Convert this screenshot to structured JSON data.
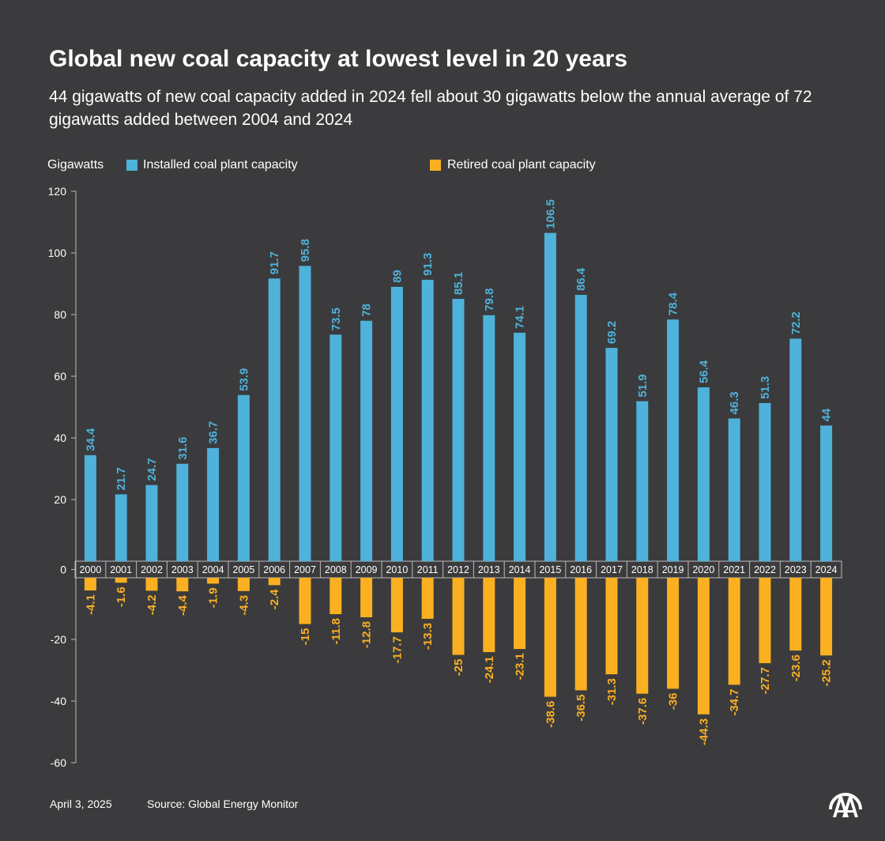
{
  "title": "Global new coal capacity at lowest level in 20 years",
  "subtitle": "44 gigawatts of new coal capacity added in 2024 fell about 30 gigawatts below the annual average of 72 gigawatts added between 2004 and 2024",
  "footer": {
    "date": "April 3, 2025",
    "source": "Source: Global Energy Monitor",
    "logo": "AA"
  },
  "chart_data": {
    "type": "bar",
    "title": "Global new coal capacity at lowest level in 20 years",
    "ylabel": "Gigawatts",
    "ylim": [
      -60,
      120
    ],
    "yticks": [
      120,
      100,
      80,
      60,
      40,
      20,
      0,
      -20,
      -40,
      -60
    ],
    "legend_position": "top",
    "categories": [
      "2000",
      "2001",
      "2002",
      "2003",
      "2004",
      "2005",
      "2006",
      "2007",
      "2008",
      "2009",
      "2010",
      "2011",
      "2012",
      "2013",
      "2014",
      "2015",
      "2016",
      "2017",
      "2018",
      "2019",
      "2020",
      "2021",
      "2022",
      "2023",
      "2024"
    ],
    "series": [
      {
        "name": "Installed coal plant capacity",
        "color": "#4fb2da",
        "values": [
          34.4,
          21.7,
          24.7,
          31.6,
          36.7,
          53.9,
          91.7,
          95.8,
          73.5,
          78,
          89,
          91.3,
          85.1,
          79.8,
          74.1,
          106.5,
          86.4,
          69.2,
          51.9,
          78.4,
          56.4,
          46.3,
          51.3,
          72.2,
          44
        ]
      },
      {
        "name": "Retired coal plant capacity",
        "color": "#fbb022",
        "values": [
          -4.1,
          -1.6,
          -4.2,
          -4.4,
          -1.9,
          -4.3,
          -2.4,
          -15,
          -11.8,
          -12.8,
          -17.7,
          -13.3,
          -25,
          -24.1,
          -23.1,
          -38.6,
          -36.5,
          -31.3,
          -37.6,
          -36,
          -44.3,
          -34.7,
          -27.7,
          -23.6,
          -25.2
        ]
      }
    ]
  }
}
